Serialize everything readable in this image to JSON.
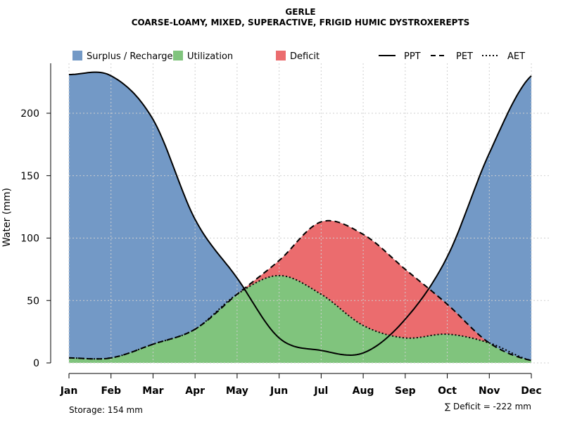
{
  "chart_data": {
    "type": "area",
    "title": "GERLE",
    "subtitle": "COARSE-LOAMY, MIXED, SUPERACTIVE, FRIGID HUMIC DYSTROXEREPTS",
    "xlabel": "",
    "ylabel": "Water (mm)",
    "ylim": [
      0,
      240
    ],
    "yticks": [
      0,
      50,
      100,
      150,
      200
    ],
    "grid": true,
    "categories": [
      "Jan",
      "Feb",
      "Mar",
      "Apr",
      "May",
      "Jun",
      "Jul",
      "Aug",
      "Sep",
      "Oct",
      "Nov",
      "Dec"
    ],
    "series": [
      {
        "name": "PPT",
        "values": [
          231,
          230,
          195,
          115,
          68,
          20,
          10,
          8,
          35,
          85,
          168,
          230
        ]
      },
      {
        "name": "PET",
        "values": [
          4,
          4,
          15,
          27,
          55,
          82,
          113,
          103,
          75,
          47,
          16,
          2
        ]
      },
      {
        "name": "AET",
        "values": [
          4,
          4,
          15,
          27,
          55,
          70,
          55,
          30,
          20,
          23,
          16,
          2
        ]
      }
    ],
    "areas": [
      {
        "name": "Surplus / Recharge",
        "color": "#7399c6"
      },
      {
        "name": "Utilization",
        "color": "#80c47d"
      },
      {
        "name": "Deficit",
        "color": "#eb6c6e"
      }
    ],
    "legend": {
      "position": "top",
      "items": [
        {
          "label": "Surplus / Recharge",
          "kind": "patch",
          "color": "#7399c6"
        },
        {
          "label": "Utilization",
          "kind": "patch",
          "color": "#80c47d"
        },
        {
          "label": "Deficit",
          "kind": "patch",
          "color": "#eb6c6e"
        },
        {
          "label": "PPT",
          "kind": "line",
          "dash": "solid"
        },
        {
          "label": "PET",
          "kind": "line",
          "dash": "dashed"
        },
        {
          "label": "AET",
          "kind": "line",
          "dash": "dotted"
        }
      ]
    },
    "annotations": {
      "storage": "Storage: 154 mm",
      "deficit": "∑ Deficit = -222 mm"
    }
  }
}
